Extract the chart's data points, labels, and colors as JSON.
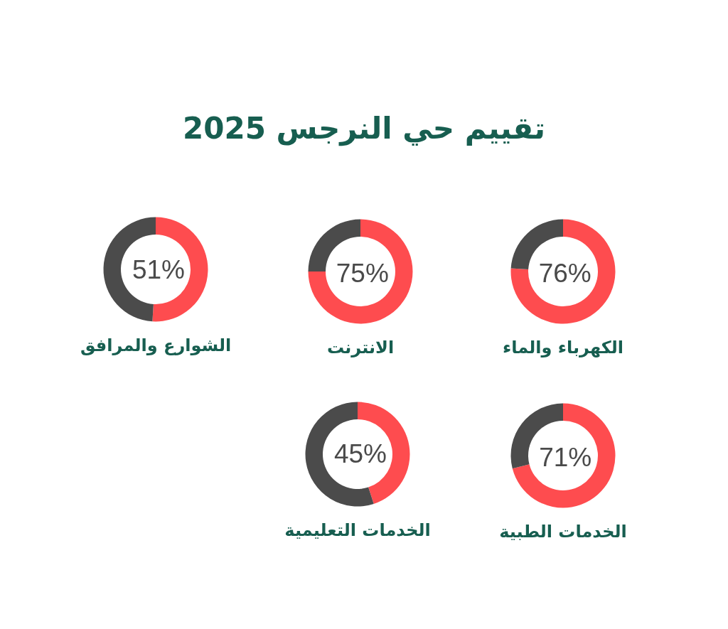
{
  "chart_data": [
    {
      "type": "other",
      "title": "تقييم حي النرجس 2025"
    },
    {
      "type": "donut",
      "title": "الكهرباء والماء",
      "categories": [
        null,
        null
      ],
      "values": [
        76,
        24
      ],
      "colors": [
        "#fe4c4f",
        "#4b4b4b"
      ],
      "value_labels": [
        "76%",
        null
      ]
    },
    {
      "type": "donut",
      "title": "الانترنت",
      "categories": [
        null,
        null
      ],
      "values": [
        75,
        25
      ],
      "colors": [
        "#fe4c4f",
        "#4b4b4b"
      ],
      "value_labels": [
        "75%",
        null
      ]
    },
    {
      "type": "donut",
      "title": "الشوارع والمرافق",
      "categories": [
        null,
        null
      ],
      "values": [
        51,
        49
      ],
      "colors": [
        "#fe4c4f",
        "#4b4b4b"
      ],
      "value_labels": [
        "51%",
        null
      ]
    },
    {
      "type": "donut",
      "title": "الخدمات الطبية",
      "categories": [
        null,
        null
      ],
      "values": [
        71,
        29
      ],
      "colors": [
        "#fe4c4f",
        "#4b4b4b"
      ],
      "value_labels": [
        "71%",
        null
      ]
    },
    {
      "type": "donut",
      "title": "الخدمات التعليمية",
      "categories": [
        null,
        null
      ],
      "values": [
        45,
        55
      ],
      "colors": [
        "#fe4c4f",
        "#4b4b4b"
      ],
      "value_labels": [
        "45%",
        null
      ]
    }
  ]
}
